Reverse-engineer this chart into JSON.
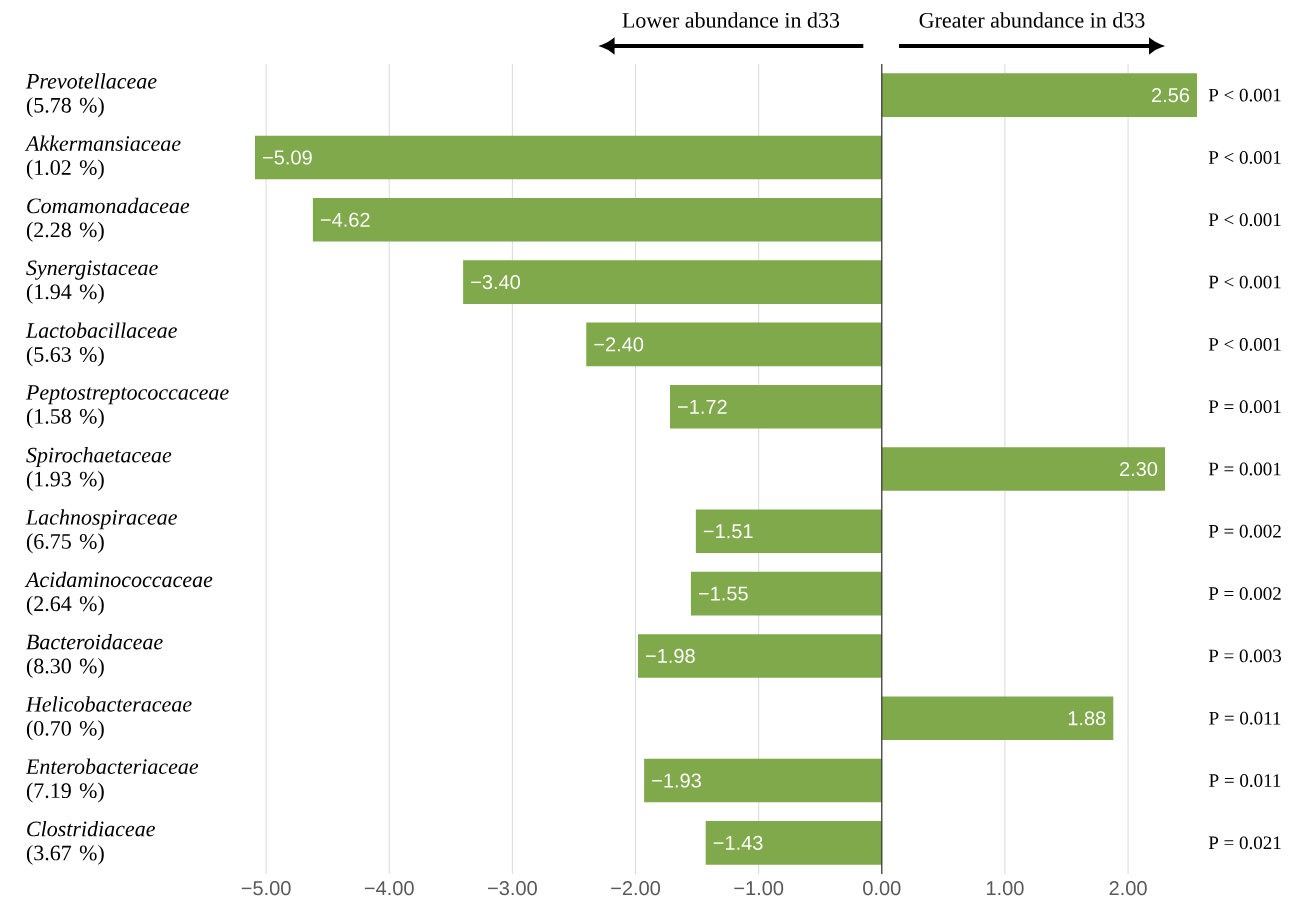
{
  "chart_data": {
    "type": "bar",
    "orientation": "horizontal",
    "categories": [
      "*Prevotellaceae* (5.78 %)",
      "*Akkermansiaceae* (1.02 %)",
      "*Comamonadaceae* (2.28 %)",
      "*Synergistaceae* (1.94 %)",
      "*Lactobacillaceae* (5.63 %)",
      "*Peptostreptococcaceae* (1.58 %)",
      "*Spirochaetaceae* (1.93 %)",
      "*Lachnospiraceae* (6.75 %)",
      "*Acidaminococcaceae* (2.64 %)",
      "*Bacteroidaceae* (8.30 %)",
      "*Helicobacteraceae* (0.70 %)",
      "*Enterobacteriaceae* (7.19 %)",
      "*Clostridiaceae* (3.67 %)"
    ],
    "values": [
      2.56,
      -5.09,
      -4.62,
      -3.4,
      -2.4,
      -1.72,
      2.3,
      -1.51,
      -1.55,
      -1.98,
      1.88,
      -1.93,
      -1.43
    ],
    "value_labels": [
      "2.56",
      "−5.09",
      "−4.62",
      "−3.40",
      "−2.40",
      "−1.72",
      "2.30",
      "−1.51",
      "−1.55",
      "−1.98",
      "1.88",
      "−1.93",
      "−1.43"
    ],
    "color": "#80a94c",
    "xlim": [
      -5.09,
      2.56
    ],
    "xticks": [
      {
        "value": -5,
        "label": "−5.00"
      },
      {
        "value": -4,
        "label": "−4.00"
      },
      {
        "value": -3,
        "label": "−3.00"
      },
      {
        "value": -2,
        "label": "−2.00"
      },
      {
        "value": -1,
        "label": "−1.00"
      },
      {
        "value": 0,
        "label": "0.00"
      },
      {
        "value": 1,
        "label": "1.00"
      },
      {
        "value": 2,
        "label": "2.00"
      }
    ],
    "grid": "x",
    "ref_lines": [
      {
        "axis": "x",
        "value": 0,
        "color": "#333333"
      }
    ],
    "annotations": [
      "Lower abundance in d33",
      "Greater abundance in d33",
      "P < 0.001",
      "P < 0.001",
      "P < 0.001",
      "P < 0.001",
      "P < 0.001",
      "P = 0.001",
      "P = 0.001",
      "P = 0.002",
      "P = 0.002",
      "P = 0.003",
      "P = 0.011",
      "P = 0.011",
      "P = 0.021"
    ]
  }
}
